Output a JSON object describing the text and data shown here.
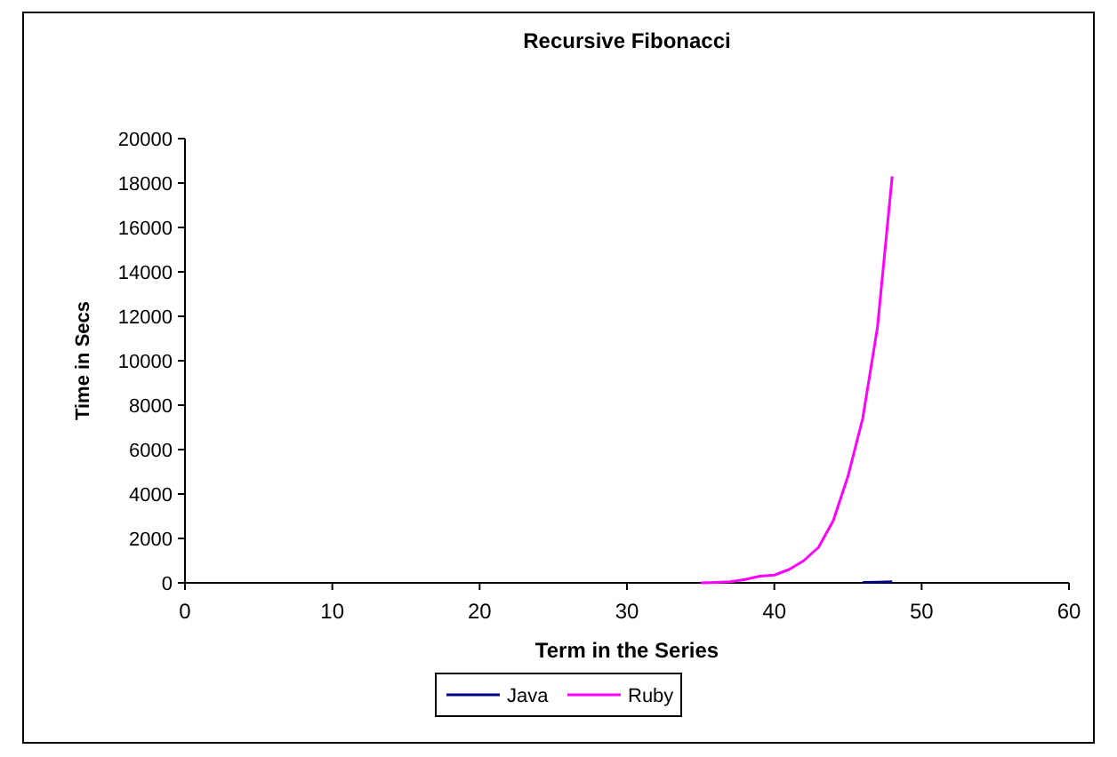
{
  "chart_data": {
    "type": "line",
    "title": "Recursive Fibonacci",
    "xlabel": "Term in the Series",
    "ylabel": "Time in Secs",
    "xlim": [
      0,
      60
    ],
    "xticks": [
      0,
      10,
      20,
      30,
      40,
      50,
      60
    ],
    "ylim": [
      0,
      20000
    ],
    "yticks": [
      0,
      2000,
      4000,
      6000,
      8000,
      10000,
      12000,
      14000,
      16000,
      18000,
      20000
    ],
    "grid": false,
    "legend": "bottom",
    "marker": "none",
    "line_style": "solid",
    "series": [
      {
        "name": "Java",
        "color": "#000080",
        "x": [
          46,
          47,
          48
        ],
        "values": [
          20,
          30,
          50
        ]
      },
      {
        "name": "Ruby",
        "color": "#ff00ff",
        "x": [
          35,
          36,
          37,
          38,
          39,
          40,
          41,
          42,
          43,
          44,
          45,
          46,
          47,
          48
        ],
        "values": [
          0,
          20,
          50,
          150,
          300,
          350,
          600,
          1000,
          1600,
          2800,
          4800,
          7400,
          11500,
          18300
        ]
      }
    ]
  }
}
